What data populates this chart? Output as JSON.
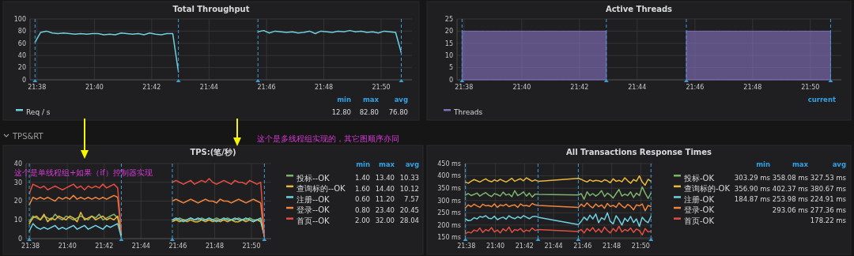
{
  "chart_data": [
    {
      "type": "line",
      "title": "Total Throughput",
      "x": [
        21.6322,
        21.6355,
        21.6388,
        21.6422,
        21.6455,
        21.6488,
        21.6522,
        21.6555,
        21.6588,
        21.6622,
        21.6655,
        21.6688,
        21.6722,
        21.6755,
        21.6788,
        21.6822,
        21.6855,
        21.6888,
        21.6922,
        21.6955,
        21.6988,
        21.7022,
        21.7055,
        21.7088,
        21.7122,
        21.7155,
        21.7383,
        21.7617,
        21.765,
        21.7683,
        21.7717,
        21.775,
        21.7783,
        21.7817,
        21.785,
        21.7883,
        21.7917,
        21.795,
        21.7983,
        21.8017,
        21.805,
        21.8083,
        21.8117,
        21.815,
        21.8183,
        21.8217,
        21.825,
        21.8283,
        21.8317,
        21.835,
        21.8383,
        21.8417,
        21.845
      ],
      "series": [
        {
          "name": "Req / s",
          "color": "#6ed0e0",
          "values": [
            62,
            78,
            80,
            77,
            76,
            77,
            76,
            75,
            76,
            75,
            76,
            76,
            74,
            75,
            74,
            77,
            76,
            75,
            76,
            74,
            77,
            75,
            74,
            76,
            76,
            13,
            null,
            79,
            81,
            77,
            80,
            79,
            78,
            79,
            77,
            78,
            80,
            76,
            80,
            79,
            78,
            80,
            79,
            81,
            79,
            80,
            78,
            79,
            77,
            80,
            79,
            78,
            44
          ]
        }
      ],
      "xlim": [
        21.6293,
        21.8512
      ],
      "xticks": [
        {
          "value": 21.6333,
          "label": "21:38"
        },
        {
          "value": 21.6667,
          "label": "21:40"
        },
        {
          "value": 21.7,
          "label": "21:42"
        },
        {
          "value": 21.7333,
          "label": "21:44"
        },
        {
          "value": 21.7667,
          "label": "21:46"
        },
        {
          "value": 21.8,
          "label": "21:48"
        },
        {
          "value": 21.8333,
          "label": "21:50"
        }
      ],
      "ylim": [
        0,
        100
      ],
      "yticks": [
        0,
        20,
        40,
        60,
        80,
        100
      ],
      "grid": true,
      "legend": "bottom",
      "line_style": "solid",
      "ref_lines": [
        {
          "axis": "x",
          "value": 21.6322,
          "color": "#3d9fd6",
          "line_style": "dashed"
        },
        {
          "axis": "x",
          "value": 21.7155,
          "color": "#3d9fd6",
          "line_style": "dashed"
        },
        {
          "axis": "x",
          "value": 21.7617,
          "color": "#3d9fd6",
          "line_style": "dashed"
        },
        {
          "axis": "x",
          "value": 21.845,
          "color": "#3d9fd6",
          "line_style": "dashed"
        }
      ],
      "annotations": [
        "min",
        "max",
        "avg",
        "12.80",
        "82.80",
        "76.80"
      ]
    },
    {
      "type": "area",
      "title": "Active Threads",
      "x": [
        21.6322,
        21.6355,
        21.6388,
        21.6422,
        21.6455,
        21.6488,
        21.6522,
        21.6555,
        21.6588,
        21.6622,
        21.6655,
        21.6688,
        21.6722,
        21.6755,
        21.6788,
        21.6822,
        21.6855,
        21.6888,
        21.6922,
        21.6955,
        21.6988,
        21.7022,
        21.7055,
        21.7088,
        21.7122,
        21.7155,
        21.7383,
        21.7617,
        21.765,
        21.7683,
        21.7717,
        21.775,
        21.7783,
        21.7817,
        21.785,
        21.7883,
        21.7917,
        21.795,
        21.7983,
        21.8017,
        21.805,
        21.8083,
        21.8117,
        21.815,
        21.8183,
        21.8217,
        21.825,
        21.8283,
        21.8317,
        21.835,
        21.8383,
        21.8417,
        21.845
      ],
      "series": [
        {
          "name": "Threads",
          "color": "#806eb7",
          "values": [
            20,
            20,
            20,
            20,
            20,
            20,
            20,
            20,
            20,
            20,
            20,
            20,
            20,
            20,
            20,
            20,
            20,
            20,
            20,
            20,
            20,
            20,
            20,
            20,
            20,
            20,
            null,
            20,
            20,
            20,
            20,
            20,
            20,
            20,
            20,
            20,
            20,
            20,
            20,
            20,
            20,
            20,
            20,
            20,
            20,
            20,
            20,
            20,
            20,
            20,
            20,
            20,
            20
          ]
        }
      ],
      "xlim": [
        21.6293,
        21.8512
      ],
      "xticks": [
        {
          "value": 21.6333,
          "label": "21:38"
        },
        {
          "value": 21.6667,
          "label": "21:40"
        },
        {
          "value": 21.7,
          "label": "21:42"
        },
        {
          "value": 21.7333,
          "label": "21:44"
        },
        {
          "value": 21.7667,
          "label": "21:46"
        },
        {
          "value": 21.8,
          "label": "21:48"
        },
        {
          "value": 21.8333,
          "label": "21:50"
        }
      ],
      "ylim": [
        0,
        25
      ],
      "yticks": [
        0,
        5,
        10,
        15,
        20,
        25
      ],
      "grid": true,
      "legend": "bottom",
      "ref_lines": [
        {
          "axis": "x",
          "value": 21.6322,
          "color": "#3d9fd6",
          "line_style": "dashed"
        },
        {
          "axis": "x",
          "value": 21.7155,
          "color": "#3d9fd6",
          "line_style": "dashed"
        },
        {
          "axis": "x",
          "value": 21.7617,
          "color": "#3d9fd6",
          "line_style": "dashed"
        },
        {
          "axis": "x",
          "value": 21.845,
          "color": "#3d9fd6",
          "line_style": "dashed"
        }
      ],
      "annotations": [
        "current"
      ]
    },
    {
      "type": "line",
      "title": "TPS:(笔/秒)",
      "x": [
        21.6322,
        21.6355,
        21.6388,
        21.6422,
        21.6455,
        21.6488,
        21.6522,
        21.6555,
        21.6588,
        21.6622,
        21.6655,
        21.6688,
        21.6722,
        21.6755,
        21.6788,
        21.6822,
        21.6855,
        21.6888,
        21.6922,
        21.6955,
        21.6988,
        21.7022,
        21.7055,
        21.7088,
        21.7122,
        21.7155,
        21.7383,
        21.7617,
        21.765,
        21.7683,
        21.7717,
        21.775,
        21.7783,
        21.7817,
        21.785,
        21.7883,
        21.7917,
        21.795,
        21.7983,
        21.8017,
        21.805,
        21.8083,
        21.8117,
        21.815,
        21.8183,
        21.8217,
        21.825,
        21.8283,
        21.8317,
        21.835,
        21.8383,
        21.8417,
        21.845
      ],
      "series": [
        {
          "name": "投标--OK",
          "color": "#7eb26d",
          "values": [
            9,
            12,
            11,
            10,
            12,
            11,
            10,
            13,
            11,
            10,
            12,
            11,
            10,
            11,
            12,
            11,
            10,
            12,
            11,
            13,
            10,
            11,
            12,
            13,
            11,
            3,
            null,
            10,
            10,
            11,
            10,
            10,
            11,
            10,
            10,
            11,
            10,
            10,
            10,
            11,
            10,
            10,
            11,
            10,
            10,
            11,
            10,
            10,
            11,
            10,
            10,
            10,
            1.4
          ]
        },
        {
          "name": "查询标的--OK",
          "color": "#eab839",
          "values": [
            8,
            11,
            12,
            10,
            13,
            9,
            11,
            10,
            12,
            11,
            10,
            12,
            11,
            9,
            14,
            10,
            11,
            12,
            10,
            11,
            12,
            10,
            11,
            10,
            12,
            2,
            null,
            9,
            10,
            9,
            10,
            9,
            10,
            9,
            9,
            10,
            9,
            10,
            9,
            10,
            9,
            10,
            9,
            10,
            9,
            9,
            10,
            9,
            10,
            9,
            10,
            9,
            1.6
          ]
        },
        {
          "name": "注册--OK",
          "color": "#6ed0e0",
          "values": [
            4,
            8,
            6,
            5,
            6,
            5,
            6,
            7,
            5,
            6,
            5,
            6,
            7,
            5,
            6,
            7,
            5,
            6,
            7,
            6,
            5,
            7,
            6,
            7,
            8,
            0.6,
            null,
            10,
            11,
            10,
            9,
            10,
            11,
            10,
            11,
            10,
            10,
            11,
            10,
            9,
            10,
            11,
            10,
            10,
            11,
            10,
            10,
            11,
            10,
            9,
            10,
            11,
            1
          ]
        },
        {
          "name": "登录--OK",
          "color": "#ef843c",
          "values": [
            18,
            22,
            21,
            22,
            21,
            22,
            21,
            20,
            22,
            21,
            22,
            21,
            23,
            21,
            22,
            21,
            22,
            21,
            22,
            21,
            22,
            21,
            22,
            23,
            22,
            3,
            null,
            20,
            21,
            20,
            19,
            20,
            21,
            20,
            19,
            20,
            21,
            20,
            20,
            19,
            21,
            20,
            20,
            19,
            20,
            21,
            20,
            19,
            20,
            21,
            20,
            19,
            0.8
          ]
        },
        {
          "name": "首页--OK",
          "color": "#e24d42",
          "values": [
            24,
            29,
            28,
            27,
            28,
            26,
            27,
            28,
            27,
            26,
            27,
            28,
            29,
            27,
            28,
            26,
            28,
            27,
            28,
            27,
            29,
            27,
            28,
            29,
            27,
            4,
            null,
            30,
            31,
            30,
            29,
            30,
            31,
            29,
            30,
            31,
            30,
            32,
            30,
            29,
            30,
            31,
            30,
            29,
            31,
            30,
            30,
            29,
            31,
            30,
            29,
            30,
            2
          ]
        }
      ],
      "xlim": [
        21.6293,
        21.8512
      ],
      "xticks": [
        {
          "value": 21.6333,
          "label": "21:38"
        },
        {
          "value": 21.6667,
          "label": "21:40"
        },
        {
          "value": 21.7,
          "label": "21:42"
        },
        {
          "value": 21.7333,
          "label": "21:44"
        },
        {
          "value": 21.7667,
          "label": "21:46"
        },
        {
          "value": 21.8,
          "label": "21:48"
        },
        {
          "value": 21.8333,
          "label": "21:50"
        }
      ],
      "ylim": [
        0,
        40
      ],
      "yticks": [
        0,
        10,
        20,
        30,
        40
      ],
      "grid": true,
      "legend": "right",
      "line_style": "solid",
      "ref_lines": [
        {
          "axis": "x",
          "value": 21.6322,
          "color": "#3d9fd6",
          "line_style": "dashed"
        },
        {
          "axis": "x",
          "value": 21.7155,
          "color": "#3d9fd6",
          "line_style": "dashed"
        },
        {
          "axis": "x",
          "value": 21.7617,
          "color": "#3d9fd6",
          "line_style": "dashed"
        },
        {
          "axis": "x",
          "value": 21.845,
          "color": "#3d9fd6",
          "line_style": "dashed"
        }
      ],
      "annotations": [
        "TPS&RT",
        "这个是多线程组实现的，其它图顺序亦同",
        "这个是单线程组+如果（if）控制器实现",
        "min",
        "max",
        "avg",
        "1.40",
        "13.40",
        "10.33",
        "1.60",
        "14.40",
        "10.12",
        "0.60",
        "11.20",
        "7.57",
        "0.80",
        "23.40",
        "20.45",
        "2.00",
        "32.00",
        "28.04"
      ]
    },
    {
      "type": "line",
      "title": "All Transactions Response Times",
      "x": [
        21.6322,
        21.6355,
        21.6388,
        21.6422,
        21.6455,
        21.6488,
        21.6522,
        21.6555,
        21.6588,
        21.6622,
        21.6655,
        21.6688,
        21.6722,
        21.6755,
        21.6788,
        21.6822,
        21.6855,
        21.6888,
        21.6922,
        21.6955,
        21.6988,
        21.7022,
        21.7055,
        21.7088,
        21.7122,
        21.7155,
        21.7617,
        21.765,
        21.7683,
        21.7717,
        21.775,
        21.7783,
        21.7817,
        21.785,
        21.7883,
        21.7917,
        21.795,
        21.7983,
        21.8017,
        21.805,
        21.8083,
        21.8117,
        21.815,
        21.8183,
        21.8217,
        21.825,
        21.8283,
        21.8317,
        21.835,
        21.8383,
        21.8417,
        21.845
      ],
      "series": [
        {
          "name": "投标-OK",
          "color": "#7eb26d",
          "values": [
            322,
            328,
            320,
            325,
            330,
            318,
            326,
            332,
            322,
            316,
            328,
            324,
            318,
            334,
            322,
            326,
            315,
            340,
            320,
            326,
            335,
            318,
            330,
            314,
            326,
            325,
            322,
            328,
            305,
            335,
            320,
            328,
            318,
            326,
            340,
            316,
            330,
            322,
            310,
            328,
            345,
            318,
            326,
            320,
            335,
            312,
            330,
            320,
            355,
            330,
            308,
            330
          ]
        },
        {
          "name": "查询标的-OK",
          "color": "#eab839",
          "values": [
            375,
            370,
            378,
            385,
            380,
            375,
            382,
            388,
            380,
            376,
            384,
            378,
            386,
            380,
            375,
            382,
            390,
            378,
            384,
            388,
            380,
            392,
            385,
            378,
            384,
            378,
            390,
            386,
            380,
            375,
            384,
            378,
            382,
            380,
            376,
            384,
            380,
            372,
            388,
            378,
            382,
            376,
            392,
            380,
            370,
            385,
            378,
            400,
            375,
            362,
            386,
            378
          ]
        },
        {
          "name": "注册-OK",
          "color": "#6ed0e0",
          "values": [
            225,
            218,
            220,
            230,
            225,
            235,
            232,
            238,
            228,
            226,
            236,
            222,
            228,
            232,
            224,
            238,
            230,
            226,
            234,
            228,
            238,
            232,
            226,
            234,
            236,
            232,
            202,
            215,
            232,
            220,
            240,
            225,
            245,
            210,
            230,
            222,
            250,
            215,
            205,
            238,
            222,
            200,
            228,
            215,
            235,
            210,
            225,
            195,
            232,
            218,
            210,
            235
          ]
        },
        {
          "name": "登录-OK",
          "color": "#ef843c",
          "values": [
            270,
            282,
            275,
            285,
            278,
            272,
            285,
            278,
            280,
            275,
            286,
            272,
            282,
            278,
            285,
            275,
            280,
            282,
            272,
            286,
            278,
            280,
            276,
            288,
            282,
            280,
            272,
            285,
            275,
            290,
            278,
            270,
            286,
            275,
            282,
            268,
            288,
            276,
            280,
            272,
            290,
            278,
            270,
            284,
            276,
            262,
            282,
            278,
            286,
            258,
            280,
            275
          ]
        },
        {
          "name": "首页-OK",
          "color": "#e24d42",
          "values": [
            165,
            172,
            168,
            180,
            175,
            188,
            170,
            182,
            176,
            190,
            172,
            180,
            168,
            185,
            176,
            192,
            170,
            182,
            178,
            186,
            172,
            180,
            175,
            188,
            178,
            182,
            174,
            182,
            168,
            186,
            176,
            190,
            172,
            184,
            170,
            192,
            178,
            168,
            186,
            174,
            195,
            172,
            182,
            176,
            188,
            170,
            184,
            178,
            160,
            186,
            172,
            176
          ]
        }
      ],
      "xlim": [
        21.6317,
        21.8475
      ],
      "xticks": [
        {
          "value": 21.6333,
          "label": "21:38"
        },
        {
          "value": 21.6667,
          "label": "21:40"
        },
        {
          "value": 21.7,
          "label": "21:42"
        },
        {
          "value": 21.7333,
          "label": "21:44"
        },
        {
          "value": 21.7667,
          "label": "21:46"
        },
        {
          "value": 21.8,
          "label": "21:48"
        },
        {
          "value": 21.8333,
          "label": "21:50"
        }
      ],
      "ylim": [
        145,
        450
      ],
      "yticks": [
        {
          "value": 150,
          "label": "150 ms"
        },
        {
          "value": 200,
          "label": "200 ms"
        },
        {
          "value": 250,
          "label": "250 ms"
        },
        {
          "value": 300,
          "label": "300 ms"
        },
        {
          "value": 350,
          "label": "350 ms"
        },
        {
          "value": 400,
          "label": "400 ms"
        },
        {
          "value": 450,
          "label": "450 ms"
        }
      ],
      "grid": true,
      "legend": "right",
      "line_style": "solid",
      "ref_lines": [
        {
          "axis": "x",
          "value": 21.6322,
          "color": "#3d9fd6",
          "line_style": "dashed"
        },
        {
          "axis": "x",
          "value": 21.7155,
          "color": "#3d9fd6",
          "line_style": "dashed"
        },
        {
          "axis": "x",
          "value": 21.7617,
          "color": "#3d9fd6",
          "line_style": "dashed"
        },
        {
          "axis": "x",
          "value": 21.845,
          "color": "#3d9fd6",
          "line_style": "dashed"
        }
      ],
      "annotations": [
        "min",
        "max",
        "avg",
        "303.29 ms",
        "358.08 ms",
        "327.53 ms",
        "356.90 ms",
        "402.37 ms",
        "380.67 ms",
        "184.87 ms",
        "253.98 ms",
        "224.91 ms",
        "293.06 ms",
        "277.36 ms",
        "178.22 ms"
      ]
    }
  ]
}
